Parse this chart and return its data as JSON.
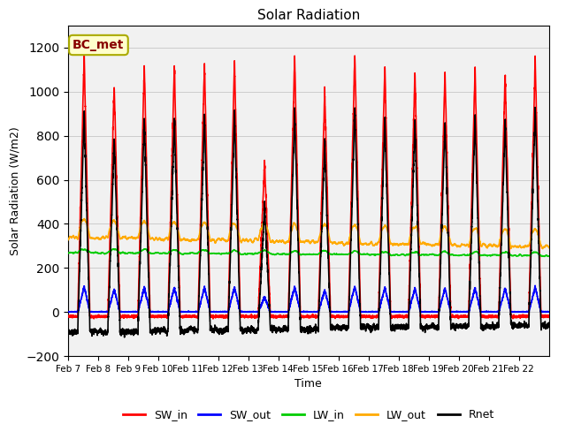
{
  "title": "Solar Radiation",
  "ylabel": "Solar Radiation (W/m2)",
  "xlabel": "Time",
  "ylim": [
    -200,
    1300
  ],
  "yticks": [
    -200,
    0,
    200,
    400,
    600,
    800,
    1000,
    1200
  ],
  "annotation_text": "BC_met",
  "x_tick_labels": [
    "Feb 7",
    "Feb 8",
    "Feb 9",
    "Feb 10",
    "Feb 11",
    "Feb 12",
    "Feb 13",
    "Feb 14",
    "Feb 15",
    "Feb 16",
    "Feb 17",
    "Feb 18",
    "Feb 19",
    "Feb 20",
    "Feb 21",
    "Feb 22"
  ],
  "num_days": 16,
  "pts_per_day": 288,
  "colors": {
    "SW_in": "#ff0000",
    "SW_out": "#0000ff",
    "LW_in": "#00cc00",
    "LW_out": "#ffaa00",
    "Rnet": "#000000"
  },
  "day_peaks_SW": [
    1170,
    1030,
    1120,
    1120,
    1130,
    1140,
    680,
    1160,
    1000,
    1170,
    1120,
    1090,
    1090,
    1100,
    1080,
    1150
  ],
  "lw_in_base": 255,
  "lw_out_base": 330,
  "sw_in_night": -20,
  "rnet_night": -90,
  "bg_band_color": "#e8e8e8",
  "grid_color": "#cccccc"
}
